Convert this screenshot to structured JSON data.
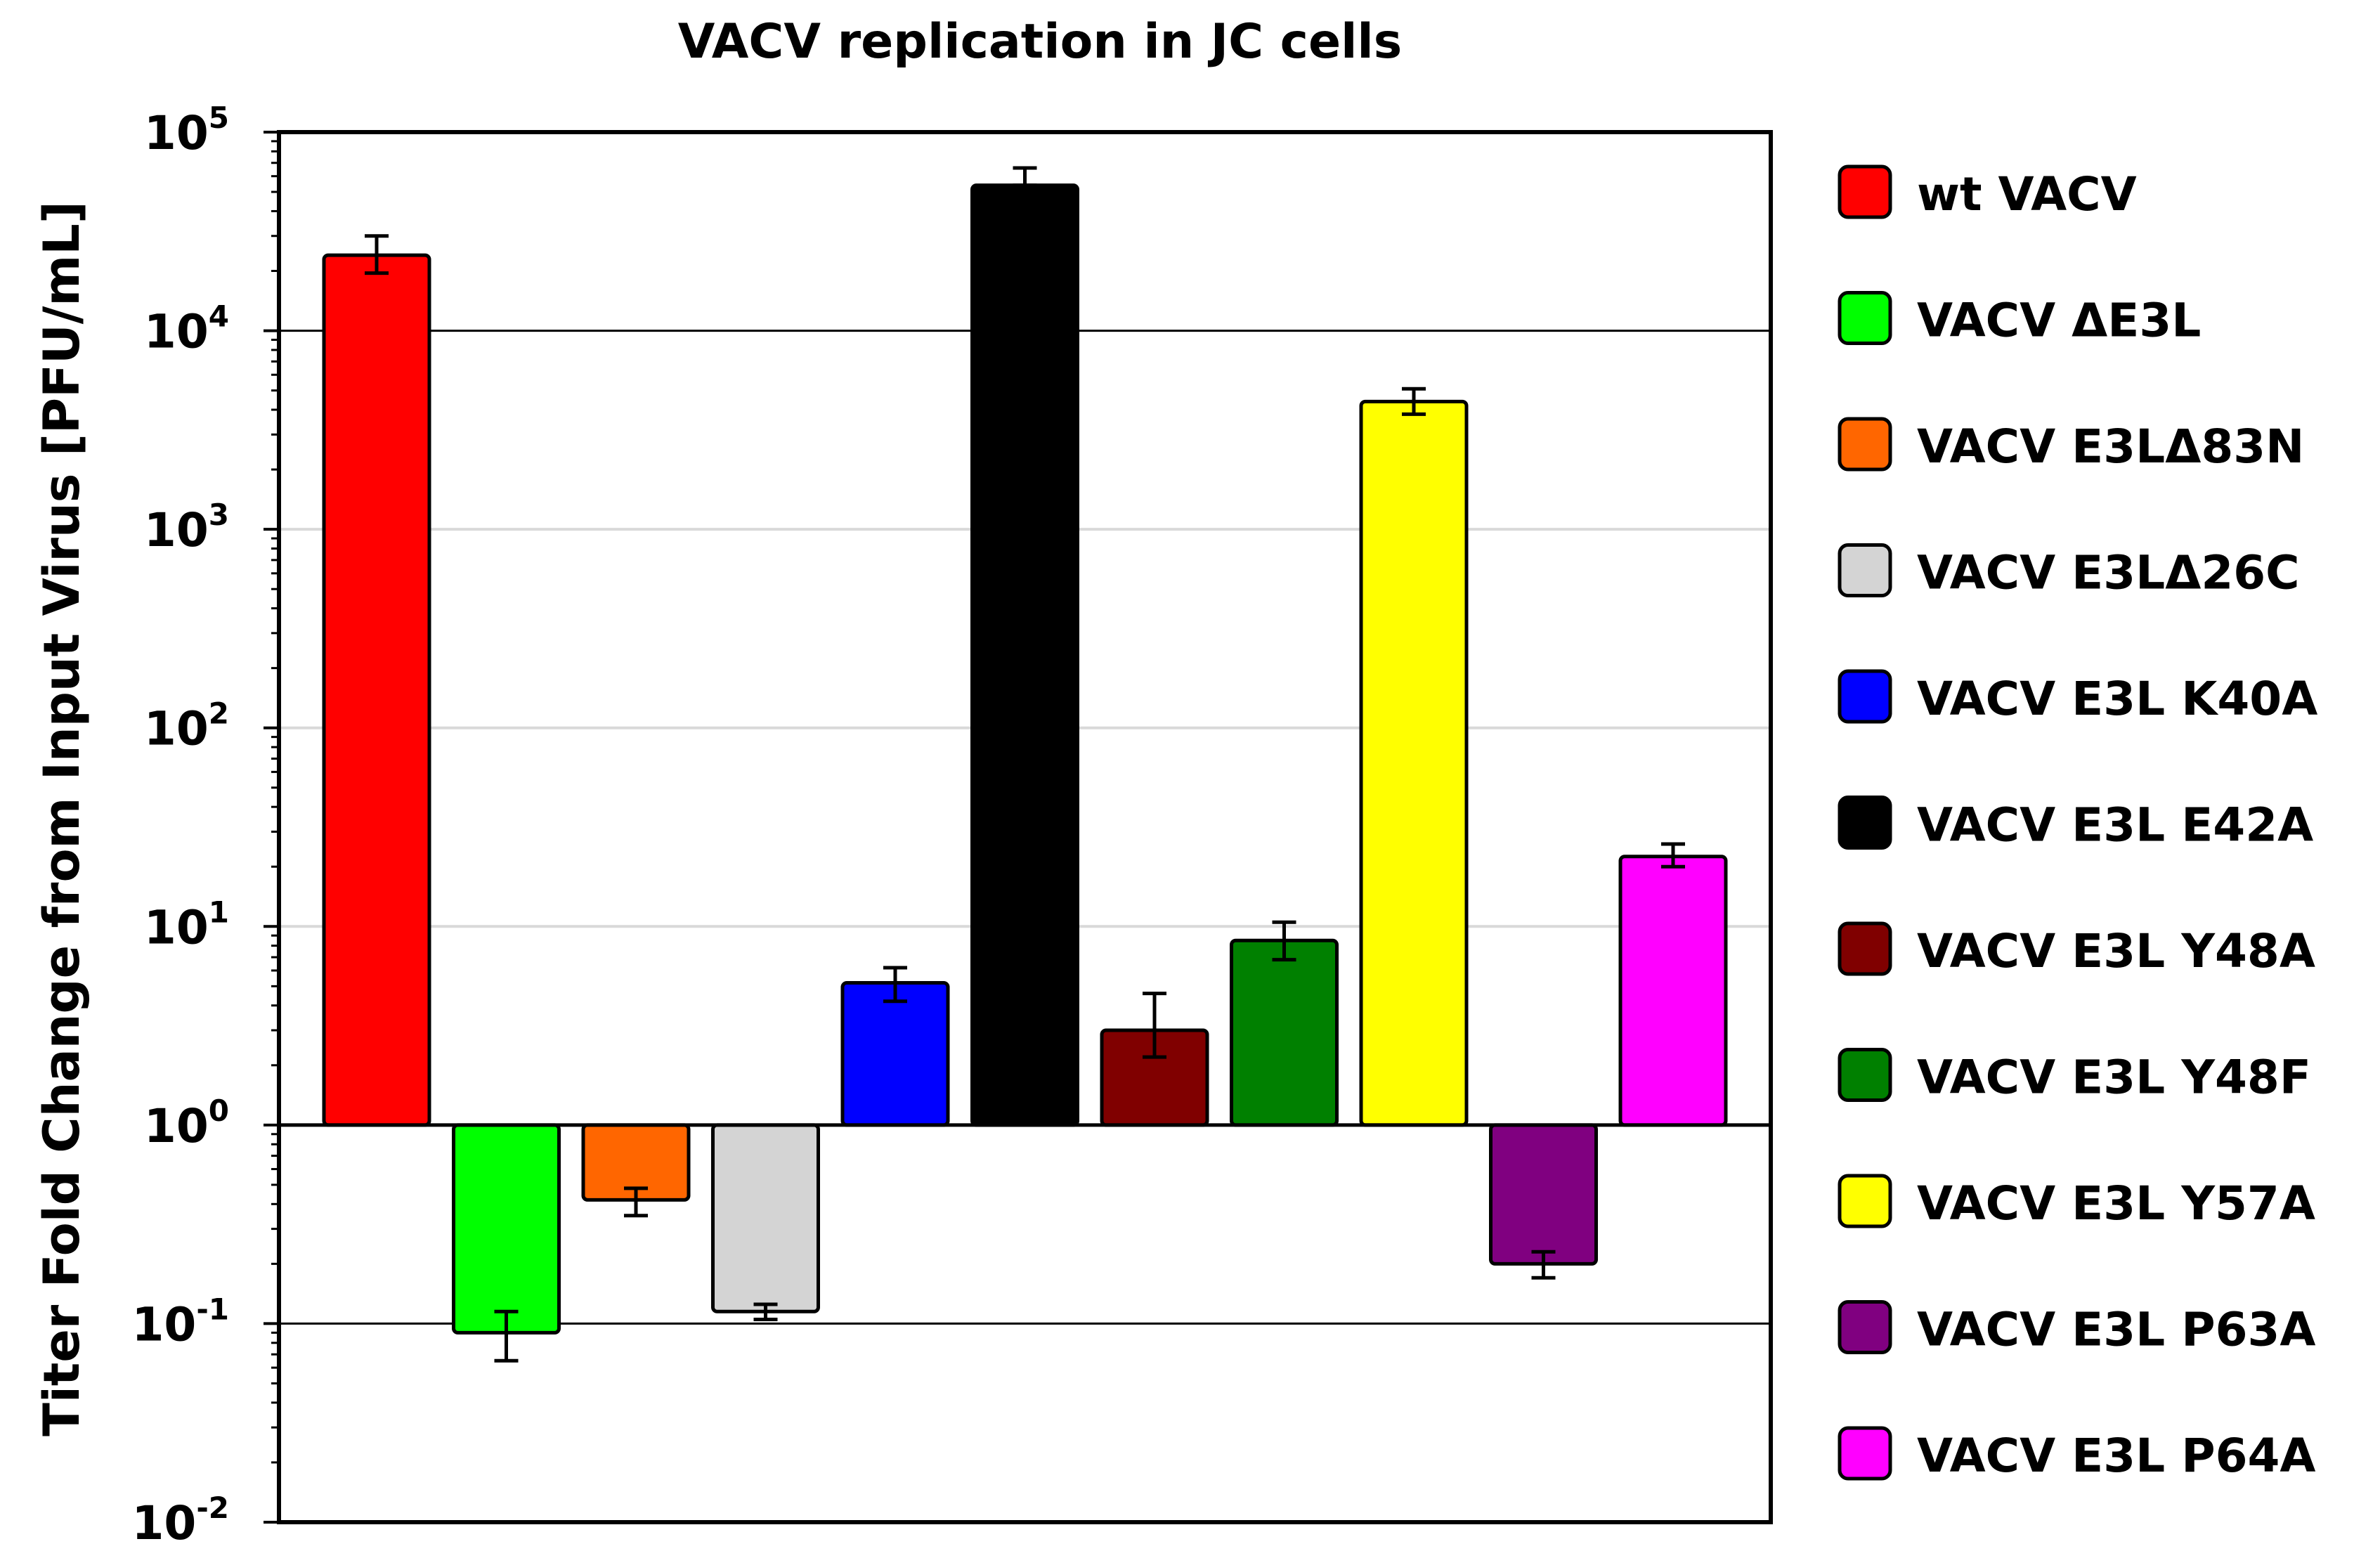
{
  "chart_data": {
    "type": "bar",
    "title": "VACV replication in JC cells",
    "xlabel": "",
    "ylabel": "Titer Fold Change from Input Virus [PFU/mL]",
    "yscale": "log",
    "ylim": [
      0.01,
      100000
    ],
    "baseline": 1,
    "yticks": [
      {
        "base": "10",
        "exp": "5",
        "value": 100000
      },
      {
        "base": "10",
        "exp": "4",
        "value": 10000
      },
      {
        "base": "10",
        "exp": "3",
        "value": 1000
      },
      {
        "base": "10",
        "exp": "2",
        "value": 100
      },
      {
        "base": "10",
        "exp": "1",
        "value": 10
      },
      {
        "base": "10",
        "exp": "0",
        "value": 1
      },
      {
        "base": "10",
        "exp": "-1",
        "value": 0.1
      },
      {
        "base": "10",
        "exp": "-2",
        "value": 0.01
      }
    ],
    "series": [
      {
        "name": "wt VACV",
        "value": 24000,
        "err_low": 19500,
        "err_high": 30000,
        "color": "#ff0000"
      },
      {
        "name": "VACV ΔE3L",
        "value": 0.09,
        "err_low": 0.065,
        "err_high": 0.115,
        "color": "#00ff00"
      },
      {
        "name": "VACV E3LΔ83N",
        "value": 0.42,
        "err_low": 0.35,
        "err_high": 0.48,
        "color": "#ff6600"
      },
      {
        "name": "VACV E3LΔ26C",
        "value": 0.115,
        "err_low": 0.105,
        "err_high": 0.125,
        "color": "#d4d4d4"
      },
      {
        "name": "VACV E3L K40A",
        "value": 5.2,
        "err_low": 4.2,
        "err_high": 6.2,
        "color": "#0000ff"
      },
      {
        "name": "VACV E3L E42A",
        "value": 54000,
        "err_low": 54000,
        "err_high": 66000,
        "color": "#000000"
      },
      {
        "name": "VACV E3L Y48A",
        "value": 3.0,
        "err_low": 2.2,
        "err_high": 4.6,
        "color": "#800000"
      },
      {
        "name": "VACV E3L Y48F",
        "value": 8.5,
        "err_low": 6.8,
        "err_high": 10.5,
        "color": "#008000"
      },
      {
        "name": "VACV E3L Y57A",
        "value": 4400,
        "err_low": 3800,
        "err_high": 5100,
        "color": "#ffff00"
      },
      {
        "name": "VACV E3L P63A",
        "value": 0.2,
        "err_low": 0.17,
        "err_high": 0.23,
        "color": "#800080"
      },
      {
        "name": "VACV E3L P64A",
        "value": 22.5,
        "err_low": 20.0,
        "err_high": 26.0,
        "color": "#ff00ff"
      }
    ],
    "legend_position": "right"
  }
}
